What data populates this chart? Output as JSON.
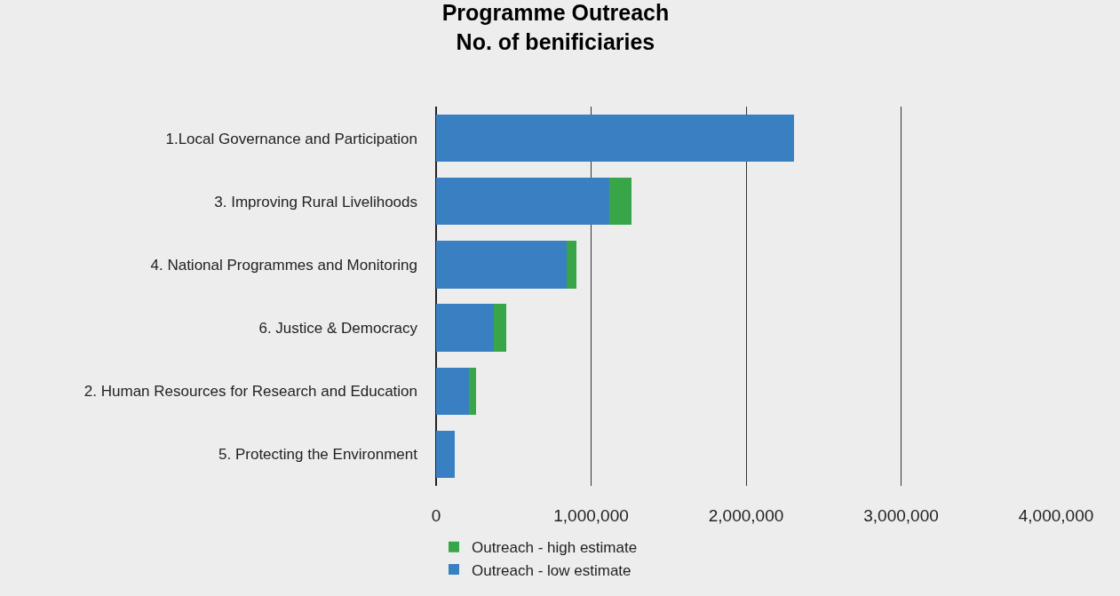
{
  "chart_data": {
    "type": "bar",
    "orientation": "horizontal",
    "stacked": true,
    "title": "Programme Outreach\nNo. of benificiaries",
    "categories": [
      "1.Local Governance and Participation",
      "3. Improving Rural Livelihoods",
      "4. National Programmes and Monitoring",
      "6. Justice & Democracy",
      "2. Human Resources for Research and Education",
      "5. Protecting the Environment"
    ],
    "series": [
      {
        "name": "Outreach - low estimate",
        "color": "#3880c2",
        "values": [
          2310000,
          1120000,
          840000,
          370000,
          210000,
          120000
        ]
      },
      {
        "name": "Outreach - high estimate",
        "color": "#38a648",
        "values": [
          null,
          140000,
          65000,
          85000,
          45000,
          null
        ]
      }
    ],
    "xlim": [
      0,
      4000000
    ],
    "xticks": [
      {
        "value": 0,
        "label": "0"
      },
      {
        "value": 1000000,
        "label": "1,000,000"
      },
      {
        "value": 2000000,
        "label": "2,000,000"
      },
      {
        "value": 3000000,
        "label": "3,000,000"
      },
      {
        "value": 4000000,
        "label": "4,000,000"
      }
    ],
    "grid": "x",
    "legend": "bottom"
  }
}
